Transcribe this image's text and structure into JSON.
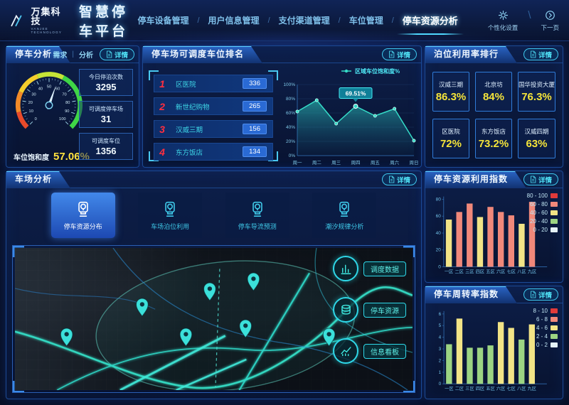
{
  "header": {
    "logo_text": "万集科技",
    "logo_sub": "VANJEE TECHNOLOGY",
    "app_title": "智慧停车平台",
    "separator": "/",
    "action_separator": "\\",
    "nav": [
      {
        "label": "停车设备管理"
      },
      {
        "label": "用户信息管理"
      },
      {
        "label": "支付渠道管理"
      },
      {
        "label": "车位管理"
      },
      {
        "label": "停车资源分析",
        "active": true
      }
    ],
    "actions": [
      {
        "label": "个性化设置",
        "icon": "gear-icon"
      },
      {
        "label": "下一页",
        "icon": "next-page-icon"
      }
    ]
  },
  "panels": {
    "parking_analysis": {
      "title": "停车分析",
      "tab_demand": "需求",
      "tab_divider": "|",
      "tab_analysis": "分析",
      "detail_label": "详情",
      "gauge_label": "车位饱和度",
      "gauge_value": "57.06%",
      "stats": [
        {
          "label": "今日停泊次数",
          "value": "3295"
        },
        {
          "label": "可调度停车场",
          "value": "31"
        },
        {
          "label": "可调度车位",
          "value": "1356"
        }
      ]
    },
    "dispatch_ranking": {
      "title": "停车场可调度车位排名",
      "detail_label": "详情",
      "items": [
        {
          "rank": "1",
          "name": "区医院",
          "value": "336"
        },
        {
          "rank": "2",
          "name": "新世纪购物",
          "value": "265"
        },
        {
          "rank": "3",
          "name": "汉威三期",
          "value": "156"
        },
        {
          "rank": "4",
          "name": "东方饭店",
          "value": "134"
        }
      ]
    },
    "berth_utilization": {
      "title": "泊位利用率排行",
      "detail_label": "详情",
      "cards": [
        {
          "name": "汉威三期",
          "value": "86.3%"
        },
        {
          "name": "北京坊",
          "value": "84%"
        },
        {
          "name": "国华投资大厦",
          "value": "76.3%"
        },
        {
          "name": "区医院",
          "value": "72%"
        },
        {
          "name": "东方饭店",
          "value": "73.2%"
        },
        {
          "name": "汉威四期",
          "value": "63%"
        }
      ]
    },
    "carpark_analysis": {
      "title": "车场分析",
      "detail_label": "详情",
      "modes": [
        {
          "label": "停车资源分布",
          "active": true
        },
        {
          "label": "车场泊位利用"
        },
        {
          "label": "停车导流预测"
        },
        {
          "label": "潮汐规律分析"
        }
      ],
      "map_buttons": [
        {
          "label": "调度数据",
          "icon": "bar-chart-icon"
        },
        {
          "label": "停车资源",
          "icon": "database-icon"
        },
        {
          "label": "信息看板",
          "icon": "trend-icon"
        }
      ]
    },
    "resource_index": {
      "title": "停车资源利用指数",
      "detail_label": "详情"
    },
    "turnover_index": {
      "title": "停车周转率指数",
      "detail_label": "详情"
    }
  },
  "map": {
    "markers": [
      {
        "x": 13,
        "y": 69
      },
      {
        "x": 32,
        "y": 48
      },
      {
        "x": 43,
        "y": 69
      },
      {
        "x": 49,
        "y": 37
      },
      {
        "x": 60,
        "y": 30
      },
      {
        "x": 58,
        "y": 63
      },
      {
        "x": 79,
        "y": 69
      }
    ]
  },
  "chart_data": [
    {
      "type": "gauge",
      "title": "车位饱和度",
      "value": 57.06,
      "display": "57.06%",
      "min": 0,
      "max": 100,
      "segments": [
        [
          0,
          12,
          "#e84a2a"
        ],
        [
          12,
          26,
          "#f28a28"
        ],
        [
          26,
          42,
          "#f4ce2c"
        ],
        [
          42,
          60,
          "#c6e437"
        ],
        [
          60,
          100,
          "#3fd546"
        ]
      ]
    },
    {
      "type": "area",
      "title": "区域车位饱和度%",
      "legend": "区域车位饱和度%",
      "x": [
        "周一",
        "周二",
        "周三",
        "周四",
        "周五",
        "周六",
        "周日"
      ],
      "values": [
        62,
        78,
        45,
        69.51,
        56,
        66,
        21
      ],
      "ylim": [
        0,
        100
      ],
      "yticks": [
        "0%",
        "20%",
        "40%",
        "60%",
        "80%",
        "100%"
      ],
      "highlight": {
        "index": 3,
        "label": "69.51%"
      },
      "line_color": "#35dcc8"
    },
    {
      "type": "bar",
      "title": "停车资源利用指数",
      "categories": [
        "一区",
        "二区",
        "三区",
        "四区",
        "五区",
        "六区",
        "七区",
        "八区",
        "九区"
      ],
      "values": [
        56,
        65,
        75,
        59,
        71,
        65,
        61,
        51,
        77
      ],
      "bar_colors": [
        "#f2e486",
        "#f0887a",
        "#f0887a",
        "#f2e486",
        "#f0887a",
        "#f0887a",
        "#f0887a",
        "#f2e486",
        "#f0887a"
      ],
      "ylim": [
        0,
        80
      ],
      "yticks": [
        0,
        20,
        40,
        60,
        80
      ],
      "legend": [
        {
          "label": "80 - 100",
          "color": "#e03a3a"
        },
        {
          "label": "60 - 80",
          "color": "#f0887a"
        },
        {
          "label": "40 - 60",
          "color": "#f2e486"
        },
        {
          "label": "20 - 40",
          "color": "#9cd482"
        },
        {
          "label": "0 - 20",
          "color": "#e4f2f6"
        }
      ]
    },
    {
      "type": "bar",
      "title": "停车周转率指数",
      "categories": [
        "一区",
        "二区",
        "三区",
        "四区",
        "五区",
        "六区",
        "七区",
        "八区",
        "九区"
      ],
      "values": [
        3.4,
        5.6,
        3.1,
        3.1,
        3.3,
        5.3,
        4.8,
        3.8,
        5.1
      ],
      "bar_colors": [
        "#9cd482",
        "#f2e486",
        "#9cd482",
        "#9cd482",
        "#9cd482",
        "#f2e486",
        "#f2e486",
        "#9cd482",
        "#f2e486"
      ],
      "ylim": [
        0,
        6
      ],
      "yticks": [
        0,
        1,
        2,
        3,
        4,
        5,
        6
      ],
      "legend": [
        {
          "label": "8 - 10",
          "color": "#e03a3a"
        },
        {
          "label": "6 - 8",
          "color": "#f0887a"
        },
        {
          "label": "4 - 6",
          "color": "#f2e486"
        },
        {
          "label": "2 - 4",
          "color": "#9cd482"
        },
        {
          "label": "0 - 2",
          "color": "#e4f2f6"
        }
      ]
    }
  ]
}
